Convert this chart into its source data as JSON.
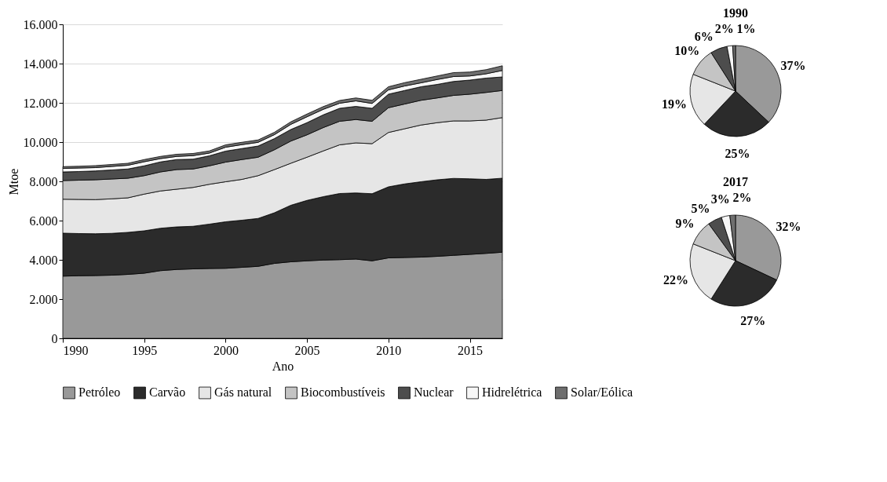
{
  "chart_data": [
    {
      "type": "area",
      "stacked": true,
      "xlabel": "Ano",
      "ylabel": "Mtoe",
      "grid": "y",
      "legend": "bottom",
      "x": [
        1990,
        1991,
        1992,
        1993,
        1994,
        1995,
        1996,
        1997,
        1998,
        1999,
        2000,
        2001,
        2002,
        2003,
        2004,
        2005,
        2006,
        2007,
        2008,
        2009,
        2010,
        2011,
        2012,
        2013,
        2014,
        2015,
        2016,
        2017
      ],
      "xlim": [
        1990,
        2017
      ],
      "xticks": [
        1990,
        1995,
        2000,
        2005,
        2010,
        2015
      ],
      "ylim": [
        0,
        16000
      ],
      "yticks": [
        0,
        {
          "value": 2000,
          "label": "2.000"
        },
        {
          "value": 4000,
          "label": "4.000"
        },
        {
          "value": 6000,
          "label": "6.000"
        },
        {
          "value": 8000,
          "label": "8.000"
        },
        {
          "value": 10000,
          "label": "10.000"
        },
        {
          "value": 12000,
          "label": "12.000"
        },
        {
          "value": 14000,
          "label": "14.000"
        },
        {
          "value": 16000,
          "label": "16.000"
        }
      ],
      "series": [
        {
          "name": "Petróleo",
          "color": "#999999",
          "values": [
            3170,
            3190,
            3200,
            3220,
            3260,
            3320,
            3450,
            3510,
            3540,
            3560,
            3570,
            3620,
            3670,
            3820,
            3900,
            3950,
            3990,
            4010,
            4040,
            3950,
            4100,
            4120,
            4140,
            4180,
            4230,
            4280,
            4330,
            4390
          ]
        },
        {
          "name": "Carvão",
          "color": "#2b2b2b",
          "values": [
            2190,
            2150,
            2130,
            2130,
            2140,
            2160,
            2160,
            2170,
            2170,
            2260,
            2370,
            2400,
            2440,
            2580,
            2880,
            3080,
            3230,
            3370,
            3370,
            3420,
            3620,
            3750,
            3840,
            3900,
            3920,
            3850,
            3770,
            3770
          ]
        },
        {
          "name": "Gás natural",
          "color": "#e6e6e6",
          "values": [
            1730,
            1740,
            1740,
            1760,
            1760,
            1870,
            1900,
            1920,
            1980,
            2030,
            2040,
            2080,
            2180,
            2200,
            2140,
            2200,
            2330,
            2480,
            2550,
            2550,
            2770,
            2810,
            2890,
            2910,
            2930,
            2950,
            3020,
            3090
          ]
        },
        {
          "name": "Biocombustíveis",
          "color": "#c4c4c4",
          "values": [
            950,
            980,
            1010,
            1010,
            1000,
            940,
            970,
            1000,
            940,
            940,
            1000,
            1010,
            940,
            1010,
            1130,
            1140,
            1190,
            1200,
            1190,
            1140,
            1260,
            1260,
            1260,
            1260,
            1300,
            1360,
            1410,
            1380
          ]
        },
        {
          "name": "Nuclear",
          "color": "#4d4d4d",
          "values": [
            440,
            440,
            450,
            460,
            470,
            500,
            510,
            510,
            500,
            510,
            560,
            560,
            570,
            570,
            590,
            620,
            650,
            660,
            670,
            660,
            690,
            690,
            690,
            690,
            710,
            720,
            730,
            690
          ]
        },
        {
          "name": "Hidrelétrica",
          "color": "#f7f7f7",
          "values": [
            180,
            180,
            170,
            180,
            190,
            210,
            170,
            160,
            180,
            140,
            200,
            200,
            190,
            200,
            260,
            300,
            280,
            260,
            280,
            250,
            220,
            230,
            200,
            250,
            250,
            210,
            220,
            330
          ]
        },
        {
          "name": "Solar/Eólica",
          "color": "#6e6e6e",
          "values": [
            90,
            90,
            100,
            100,
            100,
            110,
            110,
            110,
            110,
            110,
            120,
            120,
            120,
            120,
            130,
            140,
            140,
            140,
            150,
            160,
            160,
            170,
            180,
            180,
            200,
            200,
            210,
            240
          ]
        }
      ]
    },
    {
      "type": "pie",
      "title": "1990",
      "categories": [
        null,
        null,
        null,
        null,
        null,
        null,
        null
      ],
      "values": [
        37,
        25,
        19,
        10,
        6,
        2,
        1
      ],
      "value_labels": [
        "37%",
        "25%",
        "19%",
        "10%",
        "6%",
        "2%",
        "1%"
      ],
      "colors": [
        "#999999",
        "#2b2b2b",
        "#e6e6e6",
        "#c4c4c4",
        "#4d4d4d",
        "#f7f7f7",
        "#6e6e6e"
      ]
    },
    {
      "type": "pie",
      "title": "2017",
      "categories": [
        null,
        null,
        null,
        null,
        null,
        null,
        null
      ],
      "values": [
        32,
        27,
        22,
        9,
        5,
        3,
        2
      ],
      "value_labels": [
        "32%",
        "27%",
        "22%",
        "9%",
        "5%",
        "3%",
        "2%"
      ],
      "colors": [
        "#999999",
        "#2b2b2b",
        "#e6e6e6",
        "#c4c4c4",
        "#4d4d4d",
        "#f7f7f7",
        "#6e6e6e"
      ]
    }
  ]
}
